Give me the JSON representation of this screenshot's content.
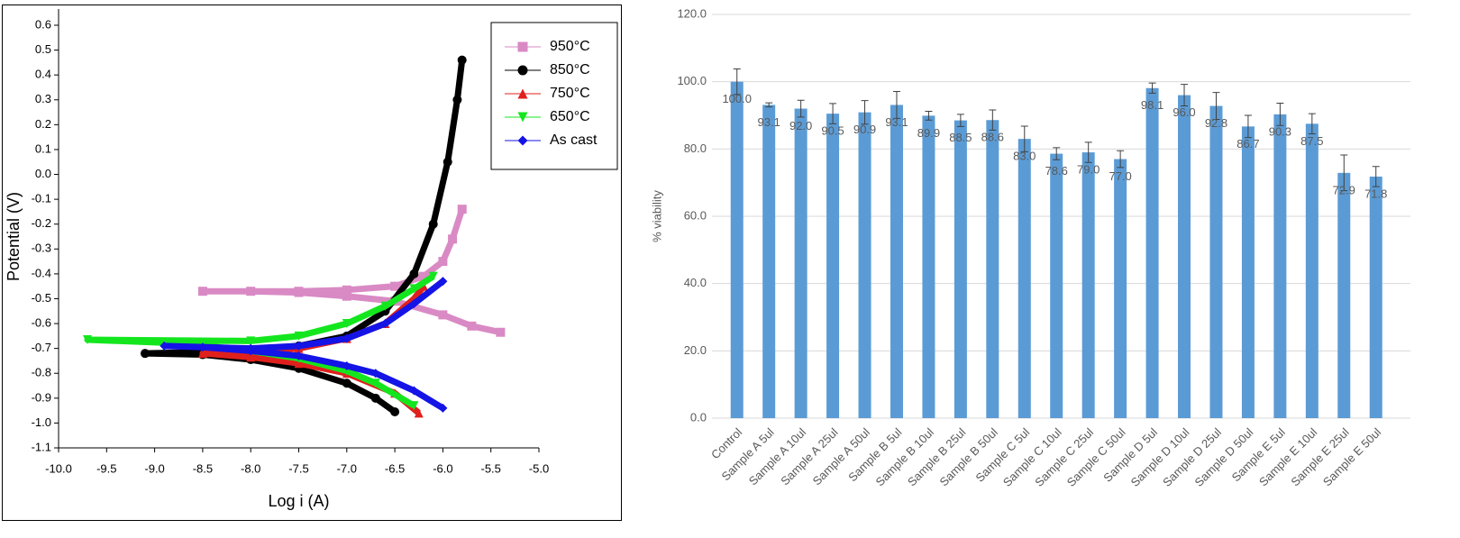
{
  "chart_data": [
    {
      "type": "scatter",
      "xlabel": "Log i (A)",
      "ylabel": "Potential (V)",
      "xlim": [
        -10,
        -5
      ],
      "ylim": [
        -1.1,
        0.6
      ],
      "xticks": [
        {
          "value": -10,
          "label": "-10.0"
        },
        -9.5,
        {
          "value": -9,
          "label": "-9.0"
        },
        -8.5,
        {
          "value": -8,
          "label": "-8.0"
        },
        -7.5,
        {
          "value": -7,
          "label": "-7.0"
        },
        -6.5,
        {
          "value": -6,
          "label": "-6.0"
        },
        -5.5,
        {
          "value": -5,
          "label": "-5.0"
        }
      ],
      "yticks": [
        0.6,
        0.5,
        0.4,
        0.3,
        0.2,
        0.1,
        {
          "value": 0,
          "label": "0.0"
        },
        -0.1,
        -0.2,
        -0.3,
        -0.4,
        -0.5,
        -0.6,
        -0.7,
        -0.8,
        -0.9,
        {
          "value": -1,
          "label": "-1.0"
        },
        -1.1
      ],
      "legend": "upper right",
      "series": [
        {
          "name": "950°C",
          "color": "#d98ac4",
          "marker": "square",
          "x": [
            -5.4,
            -5.7,
            -6.0,
            -6.5,
            -7.0,
            -7.5,
            -8.0,
            -8.5,
            -7.5,
            -7.0,
            -6.5,
            -6.2,
            -6.0,
            -5.9,
            -5.8
          ],
          "values": [
            -0.635,
            -0.61,
            -0.565,
            -0.51,
            -0.49,
            -0.475,
            -0.47,
            -0.47,
            -0.47,
            -0.465,
            -0.45,
            -0.41,
            -0.35,
            -0.26,
            -0.14
          ]
        },
        {
          "name": "850°C",
          "color": "#000000",
          "marker": "circle",
          "x": [
            -6.5,
            -6.7,
            -7.0,
            -7.5,
            -8.0,
            -8.5,
            -9.1,
            -8.5,
            -8.0,
            -7.5,
            -7.0,
            -6.6,
            -6.3,
            -6.1,
            -5.95,
            -5.85,
            -5.8
          ],
          "values": [
            -0.955,
            -0.9,
            -0.84,
            -0.78,
            -0.745,
            -0.725,
            -0.72,
            -0.715,
            -0.705,
            -0.69,
            -0.65,
            -0.55,
            -0.4,
            -0.2,
            0.05,
            0.3,
            0.46
          ]
        },
        {
          "name": "750°C",
          "color": "#e0201c",
          "marker": "triangle",
          "x": [
            -6.25,
            -6.5,
            -7.0,
            -7.5,
            -8.0,
            -8.5,
            -8.0,
            -7.5,
            -7.0,
            -6.6,
            -6.3,
            -6.2
          ],
          "values": [
            -0.96,
            -0.88,
            -0.8,
            -0.76,
            -0.735,
            -0.72,
            -0.715,
            -0.7,
            -0.66,
            -0.6,
            -0.5,
            -0.45
          ]
        },
        {
          "name": "650°C",
          "color": "#14e61e",
          "marker": "triangle-down",
          "x": [
            -6.3,
            -6.7,
            -7.0,
            -7.5,
            -8.0,
            -8.7,
            -9.7,
            -8.0,
            -7.5,
            -7.0,
            -6.6,
            -6.3,
            -6.1
          ],
          "values": [
            -0.93,
            -0.84,
            -0.79,
            -0.74,
            -0.71,
            -0.68,
            -0.665,
            -0.67,
            -0.65,
            -0.6,
            -0.53,
            -0.46,
            -0.41
          ]
        },
        {
          "name": "As cast",
          "color": "#1414e6",
          "marker": "diamond",
          "x": [
            -6.0,
            -6.3,
            -6.7,
            -7.0,
            -7.5,
            -8.0,
            -8.5,
            -8.9,
            -8.0,
            -7.5,
            -7.0,
            -6.6,
            -6.3,
            -6.0
          ],
          "values": [
            -0.94,
            -0.87,
            -0.8,
            -0.77,
            -0.73,
            -0.71,
            -0.695,
            -0.69,
            -0.7,
            -0.69,
            -0.66,
            -0.6,
            -0.52,
            -0.43
          ]
        }
      ]
    },
    {
      "type": "bar",
      "ylabel": "% viability",
      "ylim": [
        0,
        120
      ],
      "yticks": [
        {
          "value": 0,
          "label": "0.0"
        },
        {
          "value": 20,
          "label": "20.0"
        },
        {
          "value": 40,
          "label": "40.0"
        },
        {
          "value": 60,
          "label": "60.0"
        },
        {
          "value": 80,
          "label": "80.0"
        },
        {
          "value": 100,
          "label": "100.0"
        },
        {
          "value": 120,
          "label": "120.0"
        }
      ],
      "grid": true,
      "categories": [
        "Control",
        "Sample A 5ul",
        "Sample A 10ul",
        "Sample A 25ul",
        "Sample A 50ul",
        "Sample B 5ul",
        "Sample B 10ul",
        "Sample B 25ul",
        "Sample B 50ul",
        "Sample C 5ul",
        "Sample C 10ul",
        "Sample C 25ul",
        "Sample C 50ul",
        "Sample D 5ul",
        "Sample D 10ul",
        "Sample D 25ul",
        "Sample D 50ul",
        "Sample E 5ul",
        "Sample E 10ul",
        "Sample E 25ul",
        "Sample E 50ul"
      ],
      "series": [
        {
          "color": "#5b9bd5",
          "values": [
            100.0,
            93.1,
            92.0,
            90.5,
            90.9,
            93.1,
            89.9,
            88.5,
            88.6,
            83.0,
            78.6,
            79.0,
            77.0,
            98.1,
            96.0,
            92.8,
            86.7,
            90.3,
            87.5,
            72.9,
            71.8
          ],
          "value_labels": [
            "100.0",
            "93.1",
            "92.0",
            "90.5",
            "90.9",
            "93.1",
            "89.9",
            "88.5",
            "88.6",
            "83.0",
            "78.6",
            "79.0",
            "77.0",
            "98.1",
            "96.0",
            "92.8",
            "86.7",
            "90.3",
            "87.5",
            "72.9",
            "71.8"
          ],
          "errors": [
            3.8,
            0.6,
            2.5,
            3.0,
            3.5,
            4.0,
            1.3,
            1.8,
            3.0,
            3.8,
            1.8,
            3.0,
            2.5,
            1.5,
            3.2,
            4.0,
            3.3,
            3.3,
            3.0,
            5.3,
            3.0
          ]
        }
      ]
    }
  ]
}
